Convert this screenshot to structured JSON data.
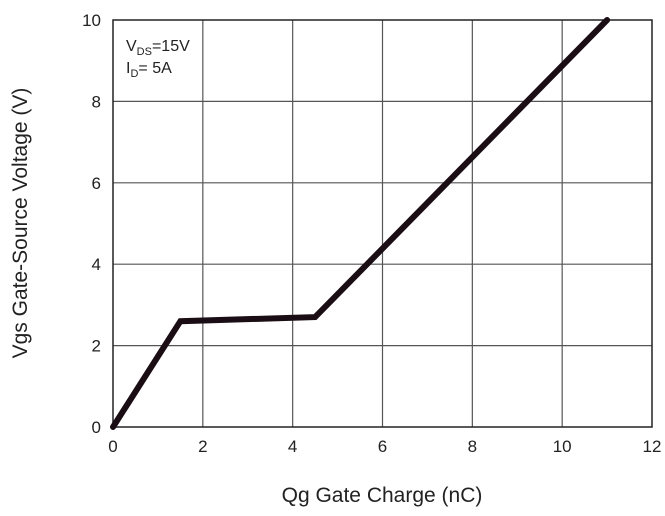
{
  "chart_data": {
    "type": "line",
    "title": "",
    "xlabel": "Qg Gate Charge (nC)",
    "ylabel": "Vgs Gate-Source Voltage (V)",
    "xlim": [
      0,
      12
    ],
    "ylim": [
      0,
      10
    ],
    "x_ticks": [
      0,
      2,
      4,
      6,
      8,
      10,
      12
    ],
    "y_ticks": [
      0,
      2,
      4,
      6,
      8,
      10
    ],
    "grid": true,
    "legend": "none",
    "series": [
      {
        "x": [
          0,
          1.5,
          4.5,
          11
        ],
        "y": [
          0,
          2.6,
          2.7,
          10
        ]
      }
    ],
    "annotation": {
      "vds_main": "V",
      "vds_sub": "DS",
      "vds_value": "=15V",
      "id_main": "I",
      "id_sub": "D",
      "id_value": "= 5A"
    },
    "colors": {
      "line": "#1a0d14",
      "grid": "#555555",
      "frame": "#222222"
    }
  }
}
